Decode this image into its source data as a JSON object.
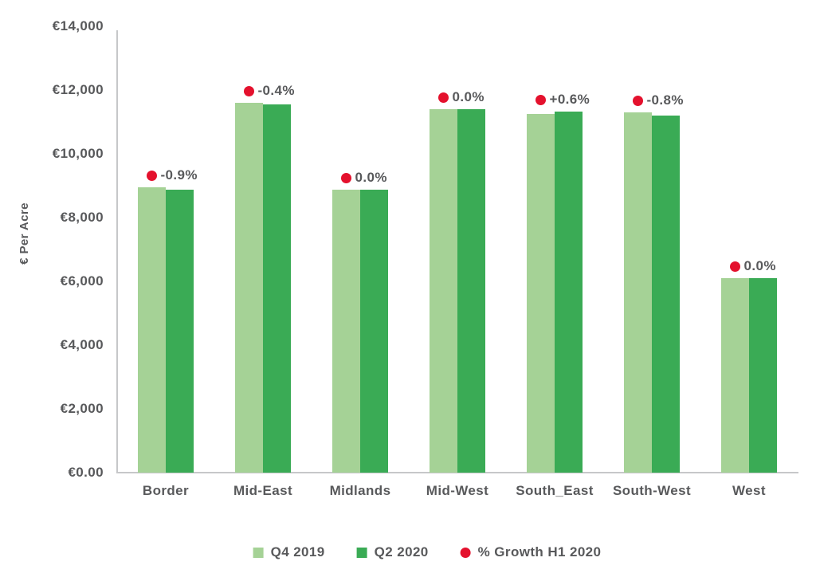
{
  "colors": {
    "text": "#58595b",
    "axis": "#c6c7c9",
    "background": "#ffffff"
  },
  "chart_data": {
    "type": "bar",
    "title": "",
    "xlabel": "",
    "ylabel": "€ Per Acre",
    "ylim": [
      0,
      14000
    ],
    "grid": false,
    "legend_position": "bottom",
    "ytick_values": [
      0,
      2000,
      4000,
      6000,
      8000,
      10000,
      12000,
      14000
    ],
    "ytick_labels": [
      "€0.00",
      "€2,000",
      "€4,000",
      "€6,000",
      "€8,000",
      "€10,000",
      "€12,000",
      "€14,000"
    ],
    "categories": [
      "Border",
      "Mid-East",
      "Midlands",
      "Mid-West",
      "South_East",
      "South-West",
      "West"
    ],
    "series": [
      {
        "name": "Q4 2019",
        "color": "#a5d296",
        "values": [
          8950,
          11600,
          8870,
          11400,
          11250,
          11300,
          6100
        ]
      },
      {
        "name": "Q2 2020",
        "color": "#3aab55",
        "values": [
          8870,
          11550,
          8870,
          11400,
          11320,
          11210,
          6100
        ]
      }
    ],
    "growth": {
      "name": "% Growth H1 2020",
      "color": "#e4112d",
      "labels": [
        "-0.9%",
        "-0.4%",
        "0.0%",
        "0.0%",
        "+0.6%",
        "-0.8%",
        "0.0%"
      ]
    }
  }
}
